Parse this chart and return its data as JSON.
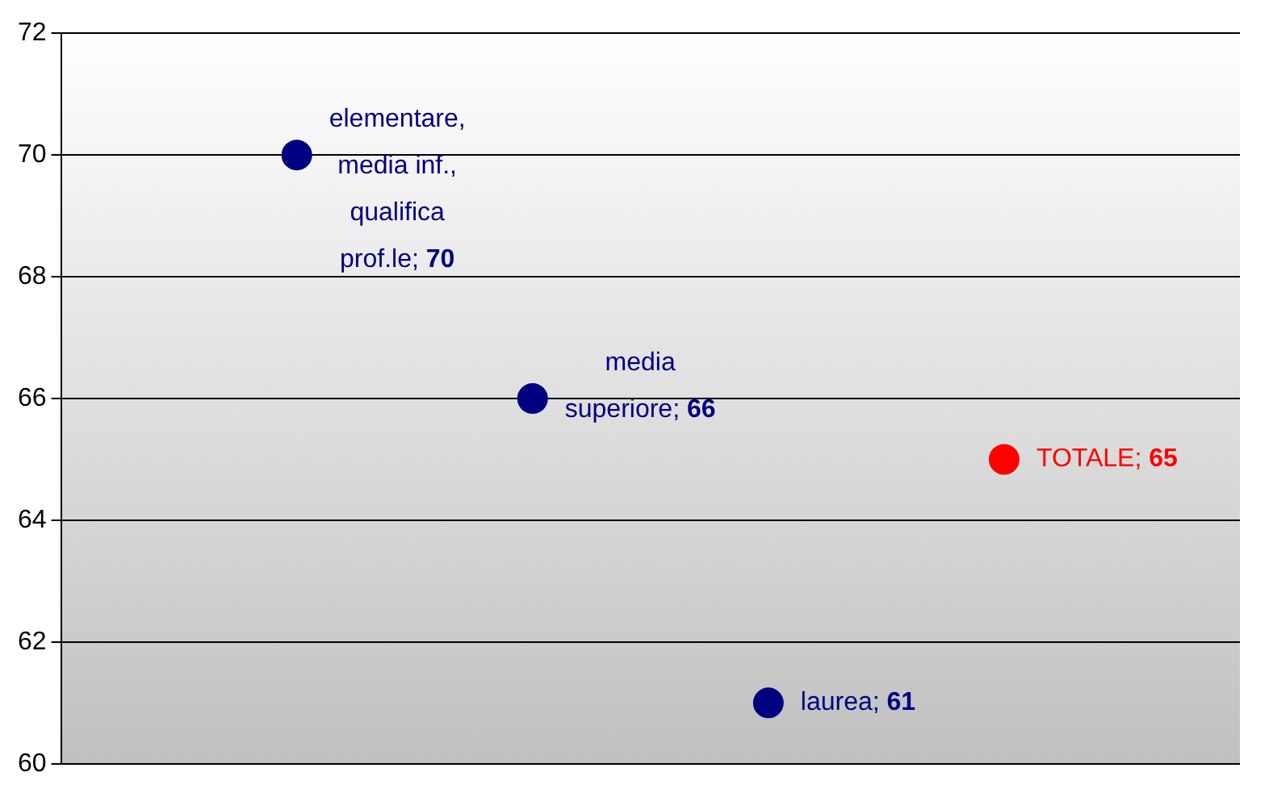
{
  "chart_data": {
    "type": "scatter",
    "categories": [
      null,
      null,
      null,
      null
    ],
    "values": [
      70,
      66,
      61,
      65
    ],
    "colors": [
      "#000080",
      "#000080",
      "#000080",
      "#ff0000"
    ],
    "value_labels": [
      "elementare, media inf., qualifica prof.le; 70",
      "media superiore; 66",
      "laurea; 61",
      "TOTALE; 65"
    ],
    "ylim": [
      60,
      72
    ],
    "yticks": [
      60,
      62,
      64,
      66,
      68,
      70,
      72
    ],
    "grid": "y",
    "legend": false,
    "marker": "circle"
  }
}
